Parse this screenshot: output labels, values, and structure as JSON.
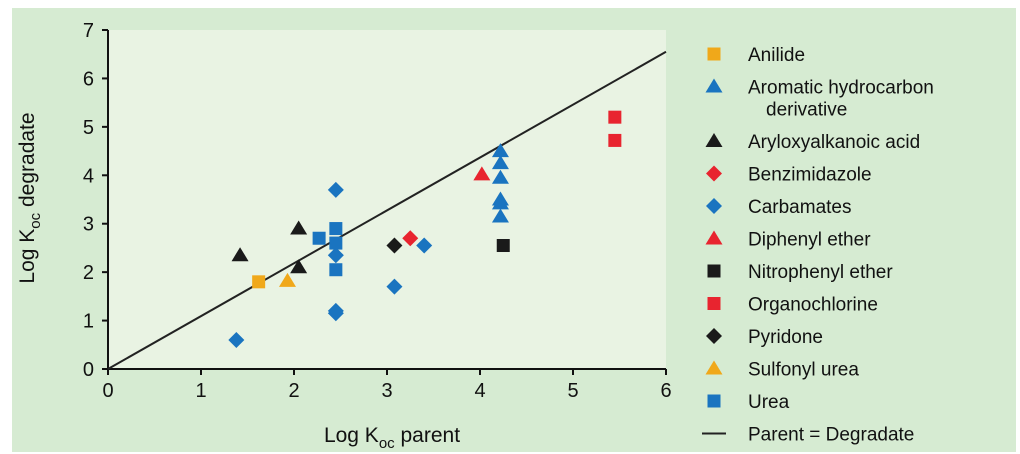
{
  "chart_data": {
    "type": "scatter",
    "xlabel_main": "Log K",
    "xlabel_sub": "oc",
    "xlabel_tail": " parent",
    "ylabel_main": "Log K",
    "ylabel_sub": "oc",
    "ylabel_tail": " degradate",
    "xlim": [
      0,
      6
    ],
    "ylim": [
      0,
      7
    ],
    "xticks": [
      "0",
      "1",
      "2",
      "3",
      "4",
      "5",
      "6"
    ],
    "yticks": [
      "0",
      "1",
      "2",
      "3",
      "4",
      "5",
      "6",
      "7"
    ],
    "grid": false,
    "legend_position": "right",
    "colors": {
      "outer_bg": "#d6ebd2",
      "plot_bg": "#e9f3e3",
      "orange": "#f0a81a",
      "blue": "#1a74c0",
      "black": "#1a1a1a",
      "red": "#e8242f",
      "line": "#222222"
    },
    "series": [
      {
        "name": "Anilide",
        "marker": "square",
        "color": "#f0a81a",
        "points": [
          [
            1.62,
            1.8
          ]
        ]
      },
      {
        "name": "Aromatic hydrocarbon",
        "name2": "derivative",
        "marker": "triangle",
        "color": "#1a74c0",
        "points": [
          [
            4.22,
            4.5
          ],
          [
            4.22,
            4.25
          ],
          [
            4.22,
            3.95
          ],
          [
            4.22,
            3.5
          ],
          [
            4.22,
            3.42
          ],
          [
            4.22,
            3.15
          ]
        ]
      },
      {
        "name": "Aryloxyalkanoic acid",
        "marker": "triangle",
        "color": "#1a1a1a",
        "points": [
          [
            1.42,
            2.35
          ],
          [
            2.05,
            2.9
          ],
          [
            2.05,
            2.1
          ]
        ]
      },
      {
        "name": "Benzimidazole",
        "marker": "diamond",
        "color": "#e8242f",
        "points": [
          [
            3.25,
            2.7
          ]
        ]
      },
      {
        "name": "Carbamates",
        "marker": "diamond",
        "color": "#1a74c0",
        "points": [
          [
            1.38,
            0.6
          ],
          [
            2.45,
            3.7
          ],
          [
            2.45,
            2.35
          ],
          [
            2.45,
            1.2
          ],
          [
            2.45,
            1.15
          ],
          [
            3.08,
            1.7
          ],
          [
            3.4,
            2.55
          ]
        ]
      },
      {
        "name": "Diphenyl ether",
        "marker": "triangle",
        "color": "#e8242f",
        "points": [
          [
            4.02,
            4.02
          ]
        ]
      },
      {
        "name": "Nitrophenyl ether",
        "marker": "square",
        "color": "#1a1a1a",
        "points": [
          [
            4.25,
            2.55
          ]
        ]
      },
      {
        "name": "Organochlorine",
        "marker": "square",
        "color": "#e8242f",
        "points": [
          [
            5.45,
            5.2
          ],
          [
            5.45,
            4.72
          ]
        ]
      },
      {
        "name": "Pyridone",
        "marker": "diamond",
        "color": "#1a1a1a",
        "points": [
          [
            3.08,
            2.55
          ]
        ]
      },
      {
        "name": "Sulfonyl urea",
        "marker": "triangle",
        "color": "#f0a81a",
        "points": [
          [
            1.93,
            1.82
          ]
        ]
      },
      {
        "name": "Urea",
        "marker": "square",
        "color": "#1a74c0",
        "points": [
          [
            2.27,
            2.7
          ],
          [
            2.45,
            2.9
          ],
          [
            2.45,
            2.6
          ],
          [
            2.45,
            2.05
          ]
        ]
      }
    ],
    "reference_line": {
      "name": "Parent = Degradate",
      "from": [
        0,
        0
      ],
      "to": [
        6,
        6.55
      ]
    }
  }
}
